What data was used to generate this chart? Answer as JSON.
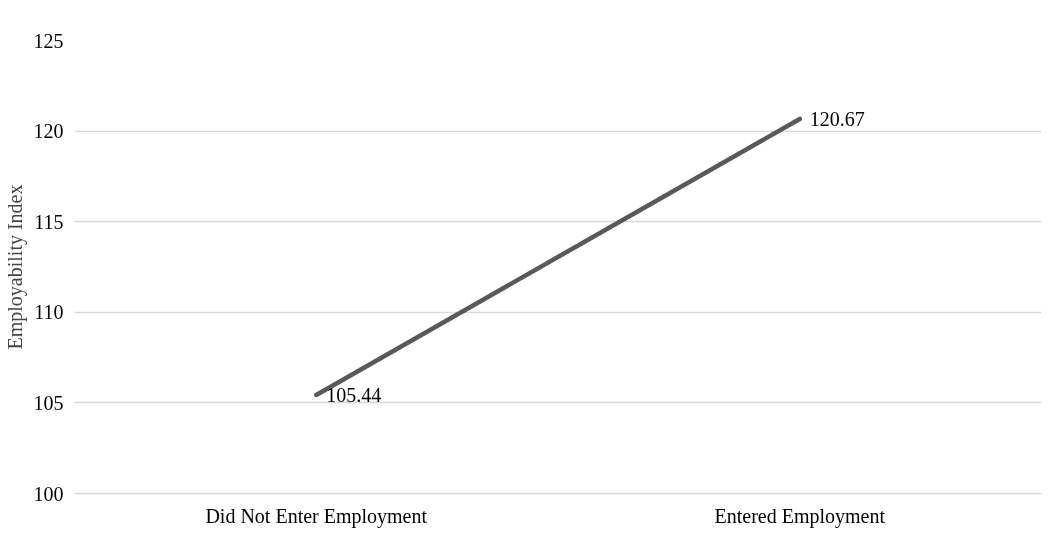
{
  "chart_data": {
    "type": "line",
    "ylabel": "Employability Index",
    "categories": [
      "Did Not Enter Employment",
      "Entered Employment"
    ],
    "series": [
      {
        "color": "#595959",
        "values": [
          105.44,
          120.67
        ]
      }
    ],
    "ylim": [
      100,
      125
    ],
    "yticks": [
      100,
      105,
      110,
      115,
      120,
      125
    ],
    "grid": "y",
    "data_labels": true,
    "marker": "none",
    "line_style": "solid"
  }
}
